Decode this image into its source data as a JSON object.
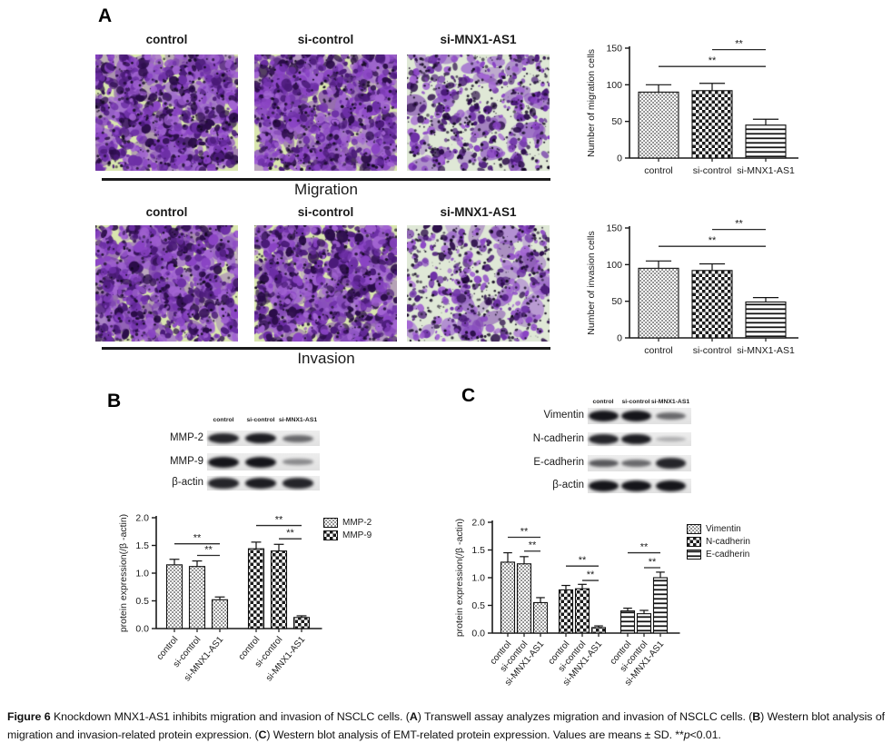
{
  "figure_label": "Figure 6",
  "panels": {
    "A": {
      "label": "A",
      "rows": [
        {
          "title": "Migration",
          "images": [
            {
              "label": "control",
              "density": "dense",
              "seed": 11
            },
            {
              "label": "si-control",
              "density": "dense",
              "seed": 87
            },
            {
              "label": "si-MNX1-AS1",
              "density": "sparse",
              "seed": 33
            }
          ]
        },
        {
          "title": "Invasion",
          "images": [
            {
              "label": "control",
              "density": "dense",
              "seed": 144
            },
            {
              "label": "si-control",
              "density": "dense",
              "seed": 55
            },
            {
              "label": "si-MNX1-AS1",
              "density": "sparse",
              "seed": 266
            }
          ]
        }
      ],
      "micrograph_palette": {
        "dense_bg": "#d9e6ae",
        "sparse_bg": "#dfe8d6",
        "cell_colors": [
          "#6d2fa6",
          "#8a44c4",
          "#a264d2",
          "#4a1a78",
          "#2a0c48"
        ],
        "speck_color": "#140a22"
      }
    },
    "B": {
      "label": "B",
      "blot": {
        "lanes": [
          "control",
          "si-control",
          "si-MNX1-AS1"
        ],
        "rows": [
          {
            "label": "MMP-2",
            "bands": [
              0.9,
              0.95,
              0.5
            ]
          },
          {
            "label": "MMP-9",
            "bands": [
              1.0,
              1.0,
              0.3
            ]
          },
          {
            "label": "β-actin",
            "bands": [
              0.9,
              0.95,
              0.9
            ]
          }
        ]
      },
      "legend": [
        "MMP-2",
        "MMP-9"
      ]
    },
    "C": {
      "label": "C",
      "blot": {
        "lanes": [
          "control",
          "si-control",
          "si-MNX1-AS1"
        ],
        "rows": [
          {
            "label": "Vimentin",
            "bands": [
              1.0,
              1.0,
              0.5
            ]
          },
          {
            "label": "N-cadherin",
            "bands": [
              0.9,
              0.95,
              0.1
            ]
          },
          {
            "label": "E-cadherin",
            "bands": [
              0.6,
              0.5,
              0.9
            ]
          },
          {
            "label": "β-actin",
            "bands": [
              1.0,
              1.0,
              1.0
            ]
          }
        ]
      },
      "legend": [
        "Vimentin",
        "N-cadherin",
        "E-cadherin"
      ]
    }
  },
  "chart_data": [
    {
      "id": "migration",
      "type": "bar",
      "title": "",
      "ylabel": "Number of migration cells",
      "ylim": [
        0,
        150
      ],
      "yticks": [
        0,
        50,
        100,
        150
      ],
      "ytick_labels": [
        "0",
        "50",
        "100",
        "150"
      ],
      "categories": [
        "control",
        "si-control",
        "si-MNX1-AS1"
      ],
      "values": [
        90,
        92,
        45
      ],
      "errors": [
        10,
        10,
        8
      ],
      "patterns": [
        "dots",
        "checker",
        "hlines"
      ],
      "significance": [
        {
          "from": 0,
          "to": 2,
          "y": 125,
          "label": "**"
        },
        {
          "from": 1,
          "to": 2,
          "y": 148,
          "label": "**"
        }
      ]
    },
    {
      "id": "invasion",
      "type": "bar",
      "title": "",
      "ylabel": "Number of invasion cells",
      "ylim": [
        0,
        150
      ],
      "yticks": [
        0,
        50,
        100,
        150
      ],
      "ytick_labels": [
        "0",
        "50",
        "100",
        "150"
      ],
      "categories": [
        "control",
        "si-control",
        "si-MNX1-AS1"
      ],
      "values": [
        95,
        92,
        49
      ],
      "errors": [
        10,
        9,
        6
      ],
      "patterns": [
        "dots",
        "checker",
        "hlines"
      ],
      "significance": [
        {
          "from": 0,
          "to": 2,
          "y": 125,
          "label": "**"
        },
        {
          "from": 1,
          "to": 2,
          "y": 148,
          "label": "**"
        }
      ]
    },
    {
      "id": "panelB",
      "type": "bar",
      "title": "",
      "ylabel": "protein expression(/β -actin)",
      "ylim": [
        0,
        2
      ],
      "yticks": [
        0,
        0.5,
        1,
        1.5,
        2
      ],
      "ytick_labels": [
        "0.0",
        "0.5",
        "1.0",
        "1.5",
        "2.0"
      ],
      "categories": [
        "control",
        "si-control",
        "si-MNX1-AS1"
      ],
      "series": [
        {
          "name": "MMP-2",
          "pattern": "dots",
          "values": [
            1.15,
            1.12,
            0.52
          ],
          "errors": [
            0.1,
            0.1,
            0.05
          ]
        },
        {
          "name": "MMP-9",
          "pattern": "checker",
          "values": [
            1.44,
            1.4,
            0.2
          ],
          "errors": [
            0.12,
            0.12,
            0.03
          ]
        }
      ],
      "significance": [
        {
          "from": 0,
          "to": 2,
          "y": 1.53,
          "label": "**"
        },
        {
          "from": 1,
          "to": 2,
          "y": 1.32,
          "label": "**"
        },
        {
          "from": 3,
          "to": 5,
          "y": 1.86,
          "label": "**"
        },
        {
          "from": 4,
          "to": 5,
          "y": 1.62,
          "label": "**"
        }
      ]
    },
    {
      "id": "panelC",
      "type": "bar",
      "title": "",
      "ylabel": "protein expression(/β -actin)",
      "ylim": [
        0,
        2
      ],
      "yticks": [
        0,
        0.5,
        1,
        1.5,
        2
      ],
      "ytick_labels": [
        "0.0",
        "0.5",
        "1.0",
        "1.5",
        "2.0"
      ],
      "categories": [
        "control",
        "si-control",
        "si-MNX1-AS1"
      ],
      "series": [
        {
          "name": "Vimentin",
          "pattern": "dots",
          "values": [
            1.28,
            1.25,
            0.55
          ],
          "errors": [
            0.17,
            0.13,
            0.09
          ]
        },
        {
          "name": "N-cadherin",
          "pattern": "checker",
          "values": [
            0.78,
            0.8,
            0.1
          ],
          "errors": [
            0.08,
            0.08,
            0.03
          ]
        },
        {
          "name": "E-cadherin",
          "pattern": "hlines",
          "values": [
            0.4,
            0.35,
            1.0
          ],
          "errors": [
            0.05,
            0.06,
            0.1
          ]
        }
      ],
      "significance": [
        {
          "from": 0,
          "to": 2,
          "y": 1.73,
          "label": "**"
        },
        {
          "from": 1,
          "to": 2,
          "y": 1.48,
          "label": "**"
        },
        {
          "from": 3,
          "to": 5,
          "y": 1.21,
          "label": "**"
        },
        {
          "from": 4,
          "to": 5,
          "y": 0.95,
          "label": "**"
        },
        {
          "from": 6,
          "to": 8,
          "y": 1.45,
          "label": "**"
        },
        {
          "from": 7,
          "to": 8,
          "y": 1.18,
          "label": "**"
        }
      ]
    }
  ],
  "caption": {
    "segments": [
      {
        "t": "Figure 6 ",
        "b": 1
      },
      {
        "t": "Knockdown MNX1-AS1 inhibits migration and invasion of NSCLC cells. ("
      },
      {
        "t": "A",
        "b": 1
      },
      {
        "t": ") Transwell assay analyzes migration and invasion of NSCLC cells. ("
      },
      {
        "t": "B",
        "b": 1
      },
      {
        "t": ") Western blot analysis of migration and invasion-related protein expression. ("
      },
      {
        "t": "C",
        "b": 1
      },
      {
        "t": ") Western blot analysis of EMT-related protein expression. Values are means ± SD. **"
      },
      {
        "t": "p",
        "i": 1
      },
      {
        "t": "<0.01."
      }
    ]
  }
}
